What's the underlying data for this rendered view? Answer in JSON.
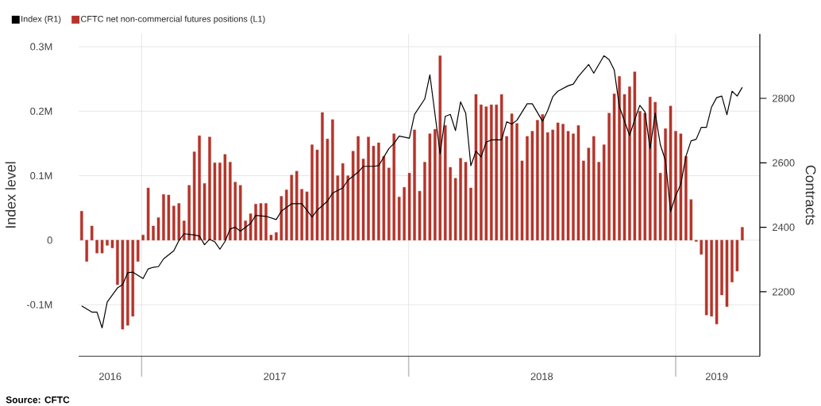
{
  "chart_data": {
    "type": "bar",
    "ylabel": "Index level",
    "y2label": "Contracts",
    "x": [
      "2016-10-11",
      "2016-10-18",
      "2016-10-25",
      "2016-11-01",
      "2016-11-08",
      "2016-11-15",
      "2016-11-22",
      "2016-11-29",
      "2016-12-06",
      "2016-12-13",
      "2016-12-20",
      "2016-12-27",
      "2017-01-03",
      "2017-01-10",
      "2017-01-17",
      "2017-01-24",
      "2017-01-31",
      "2017-02-07",
      "2017-02-14",
      "2017-02-21",
      "2017-02-28",
      "2017-03-07",
      "2017-03-14",
      "2017-03-21",
      "2017-03-28",
      "2017-04-04",
      "2017-04-11",
      "2017-04-18",
      "2017-04-25",
      "2017-05-02",
      "2017-05-09",
      "2017-05-16",
      "2017-05-23",
      "2017-05-30",
      "2017-06-06",
      "2017-06-13",
      "2017-06-20",
      "2017-06-27",
      "2017-07-04",
      "2017-07-11",
      "2017-07-18",
      "2017-07-25",
      "2017-08-01",
      "2017-08-08",
      "2017-08-15",
      "2017-08-22",
      "2017-08-29",
      "2017-09-05",
      "2017-09-12",
      "2017-09-19",
      "2017-09-26",
      "2017-10-03",
      "2017-10-10",
      "2017-10-17",
      "2017-10-24",
      "2017-10-31",
      "2017-11-07",
      "2017-11-14",
      "2017-11-21",
      "2017-11-28",
      "2017-12-05",
      "2017-12-12",
      "2017-12-19",
      "2017-12-26",
      "2018-01-02",
      "2018-01-09",
      "2018-01-16",
      "2018-01-23",
      "2018-01-30",
      "2018-02-06",
      "2018-02-13",
      "2018-02-20",
      "2018-02-27",
      "2018-03-06",
      "2018-03-13",
      "2018-03-20",
      "2018-03-27",
      "2018-04-03",
      "2018-04-10",
      "2018-04-17",
      "2018-04-24",
      "2018-05-01",
      "2018-05-08",
      "2018-05-15",
      "2018-05-22",
      "2018-05-29",
      "2018-06-05",
      "2018-06-12",
      "2018-06-19",
      "2018-06-26",
      "2018-07-03",
      "2018-07-10",
      "2018-07-17",
      "2018-07-24",
      "2018-07-31",
      "2018-08-07",
      "2018-08-14",
      "2018-08-21",
      "2018-08-28",
      "2018-09-04",
      "2018-09-11",
      "2018-09-18",
      "2018-09-25",
      "2018-10-02",
      "2018-10-09",
      "2018-10-16",
      "2018-10-23",
      "2018-10-30",
      "2018-11-06",
      "2018-11-13",
      "2018-11-20",
      "2018-11-27",
      "2018-12-04",
      "2018-12-11",
      "2018-12-18",
      "2018-12-25",
      "2019-01-01",
      "2019-01-08",
      "2019-01-15",
      "2019-01-22",
      "2019-01-29",
      "2019-02-05",
      "2019-02-12",
      "2019-02-19",
      "2019-02-26",
      "2019-03-05",
      "2019-03-12",
      "2019-03-19",
      "2019-03-26",
      "2019-04-02"
    ],
    "series": [
      {
        "name": "Index (R1)",
        "type": "line",
        "axis": "y2",
        "color": "#000000",
        "x": [
          "2016-10-11",
          "2016-10-25",
          "2016-11-01",
          "2016-11-08",
          "2016-11-15",
          "2016-11-29",
          "2016-12-06",
          "2016-12-13",
          "2016-12-20",
          "2017-01-03",
          "2017-01-10",
          "2017-01-17",
          "2017-01-24",
          "2017-01-31",
          "2017-02-14",
          "2017-02-21",
          "2017-02-28",
          "2017-03-14",
          "2017-03-21",
          "2017-03-28",
          "2017-04-04",
          "2017-04-11",
          "2017-04-18",
          "2017-04-25",
          "2017-05-02",
          "2017-05-09",
          "2017-05-16",
          "2017-05-30",
          "2017-06-06",
          "2017-06-20",
          "2017-07-04",
          "2017-07-11",
          "2017-07-25",
          "2017-08-08",
          "2017-08-22",
          "2017-08-29",
          "2017-09-12",
          "2017-09-19",
          "2017-10-03",
          "2017-10-10",
          "2017-10-24",
          "2017-10-31",
          "2017-11-14",
          "2017-11-21",
          "2017-12-05",
          "2017-12-12",
          "2017-12-19",
          "2018-01-02",
          "2018-01-09",
          "2018-01-23",
          "2018-01-30",
          "2018-02-13",
          "2018-02-20",
          "2018-02-27",
          "2018-03-06",
          "2018-03-13",
          "2018-03-20",
          "2018-03-27",
          "2018-04-03",
          "2018-04-10",
          "2018-04-17",
          "2018-04-24",
          "2018-05-08",
          "2018-05-15",
          "2018-05-22",
          "2018-05-29",
          "2018-06-12",
          "2018-06-19",
          "2018-07-03",
          "2018-07-10",
          "2018-07-17",
          "2018-07-24",
          "2018-08-07",
          "2018-08-14",
          "2018-08-21",
          "2018-09-04",
          "2018-09-11",
          "2018-09-25",
          "2018-10-02",
          "2018-10-09",
          "2018-10-16",
          "2018-10-30",
          "2018-11-06",
          "2018-11-13",
          "2018-11-20",
          "2018-11-27",
          "2018-12-04",
          "2018-12-11",
          "2018-12-18",
          "2018-12-25",
          "2019-01-01",
          "2019-01-08",
          "2019-01-15",
          "2019-01-22",
          "2019-01-29",
          "2019-02-05",
          "2019-02-12",
          "2019-02-19",
          "2019-02-26",
          "2019-03-05",
          "2019-03-12",
          "2019-03-19",
          "2019-03-26",
          "2019-04-02"
        ],
        "values": [
          2156,
          2137,
          2137,
          2088,
          2168,
          2212,
          2222,
          2259,
          2261,
          2241,
          2271,
          2276,
          2278,
          2302,
          2327,
          2359,
          2380,
          2376,
          2373,
          2346,
          2363,
          2355,
          2332,
          2356,
          2395,
          2400,
          2388,
          2412,
          2437,
          2434,
          2424,
          2450,
          2473,
          2473,
          2432,
          2453,
          2481,
          2506,
          2522,
          2546,
          2571,
          2589,
          2589,
          2591,
          2644,
          2660,
          2683,
          2676,
          2750,
          2798,
          2873,
          2628,
          2744,
          2750,
          2700,
          2789,
          2754,
          2591,
          2636,
          2618,
          2664,
          2671,
          2671,
          2727,
          2720,
          2732,
          2783,
          2783,
          2729,
          2762,
          2805,
          2822,
          2839,
          2844,
          2868,
          2905,
          2878,
          2932,
          2920,
          2888,
          2774,
          2685,
          2734,
          2778,
          2758,
          2644,
          2754,
          2656,
          2607,
          2449,
          2498,
          2534,
          2620,
          2668,
          2673,
          2710,
          2710,
          2773,
          2802,
          2807,
          2749,
          2822,
          2807,
          2834
        ]
      },
      {
        "name": "CFTC net non-commercial futures positions (L1)",
        "color": "#b5342a",
        "values": [
          45000,
          -33000,
          22000,
          -20000,
          -20000,
          -8000,
          -12000,
          -69000,
          -138000,
          -132000,
          -118000,
          -33000,
          8000,
          81000,
          22000,
          35000,
          71000,
          70000,
          53000,
          57000,
          30000,
          85000,
          137000,
          162000,
          88000,
          160000,
          120000,
          120000,
          133000,
          121000,
          90000,
          85000,
          30000,
          41000,
          56000,
          57000,
          57000,
          8000,
          12000,
          68000,
          78000,
          101000,
          107000,
          79000,
          75000,
          148000,
          140000,
          198000,
          157000,
          187000,
          100000,
          119000,
          100000,
          138000,
          161000,
          126000,
          160000,
          146000,
          151000,
          130000,
          112000,
          165000,
          67000,
          82000,
          104000,
          171000,
          76000,
          121000,
          165000,
          172000,
          286000,
          178000,
          113000,
          96000,
          127000,
          121000,
          81000,
          226000,
          210000,
          207000,
          210000,
          210000,
          226000,
          161000,
          196000,
          181000,
          123000,
          161000,
          169000,
          186000,
          195000,
          167000,
          171000,
          182000,
          180000,
          169000,
          165000,
          178000,
          123000,
          143000,
          161000,
          121000,
          148000,
          197000,
          227000,
          254000,
          226000,
          238000,
          261000,
          200000,
          197000,
          222000,
          214000,
          104000,
          173000,
          208000,
          169000,
          165000,
          130000,
          63000,
          -2000,
          -22000,
          -116000,
          -118000,
          -130000,
          -85000,
          -103000,
          -65000,
          -48000,
          20000
        ]
      }
    ],
    "xlim": [
      "2016-10-07",
      "2019-04-26"
    ],
    "xticks": [
      {
        "value": "2017-01-01",
        "label": null
      },
      {
        "value": "2018-01-01",
        "label": null
      },
      {
        "value": "2019-01-01",
        "label": null
      },
      {
        "value": "2016-11-19",
        "label": "2016"
      },
      {
        "value": "2017-07-02",
        "label": "2017"
      },
      {
        "value": "2018-07-02",
        "label": "2018"
      },
      {
        "value": "2019-02-26",
        "label": "2019"
      }
    ],
    "ylim": [
      -180000,
      320000
    ],
    "yticks": [
      {
        "value": -100000,
        "label": "-0.1M"
      },
      0,
      {
        "value": 100000,
        "label": "0.1M"
      },
      {
        "value": 200000,
        "label": "0.2M"
      },
      {
        "value": 300000,
        "label": "0.3M"
      }
    ],
    "y2lim": [
      2000,
      3000
    ],
    "y2ticks": [
      2200,
      2400,
      2600,
      2800
    ],
    "grid": true,
    "legend": "top left",
    "annotations": [
      "Source: CFTC"
    ]
  }
}
